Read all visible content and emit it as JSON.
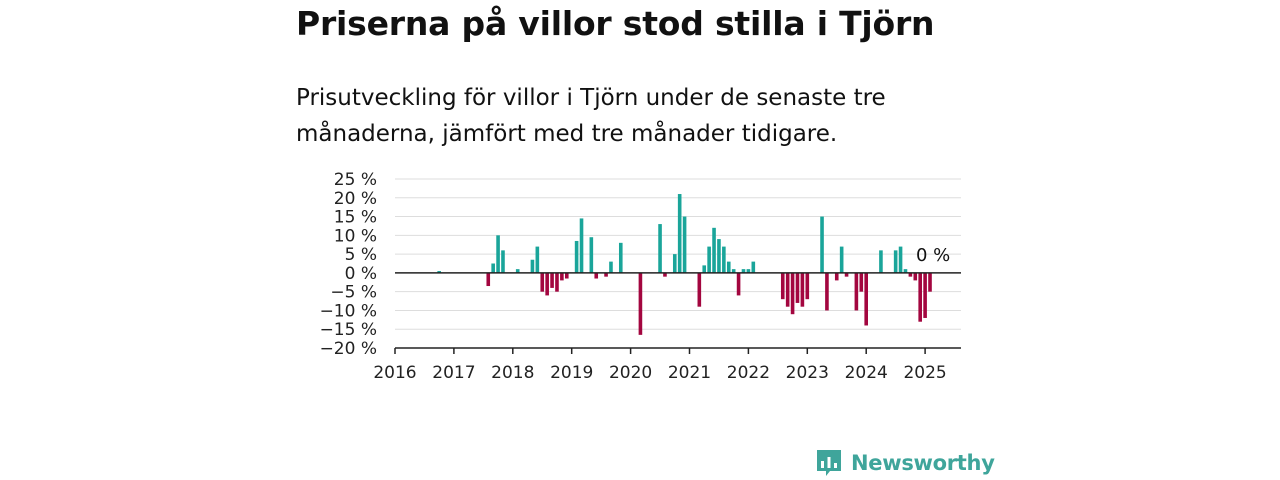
{
  "title": "Priserna på villor stod stilla i Tjörn",
  "subtitle": "Prisutveckling för villor i Tjörn under de senaste tre månaderna, jämfört med tre månader tidigare.",
  "brand": {
    "name": "Newsworthy",
    "icon": "newsworthy-logo-icon",
    "color": "#3fa59b"
  },
  "colors": {
    "positive": "#1aa59a",
    "negative": "#a3063f",
    "grid": "#dddddd",
    "axis": "#222222"
  },
  "chart_data": {
    "type": "bar",
    "title": "Priserna på villor stod stilla i Tjörn",
    "xlabel": "",
    "ylabel": "",
    "x_ticks": [
      "2016",
      "2017",
      "2018",
      "2019",
      "2020",
      "2021",
      "2022",
      "2023",
      "2024",
      "2025"
    ],
    "y_ticks": [
      25,
      20,
      15,
      10,
      5,
      0,
      -5,
      -10,
      -15,
      -20
    ],
    "y_tick_labels": [
      "25 %",
      "20 %",
      "15 %",
      "10 %",
      "5 %",
      "0 %",
      "−5 %",
      "−10 %",
      "−15 %",
      "−20 %"
    ],
    "ylim": [
      -20,
      25
    ],
    "xlim": [
      "2016-01",
      "2025-08"
    ],
    "grid": true,
    "last_value_label": "0 %",
    "series": [
      {
        "values": [
          {
            "x": "2016-10",
            "y": 0.5
          },
          {
            "x": "2017-08",
            "y": -3.5
          },
          {
            "x": "2017-09",
            "y": 2.5
          },
          {
            "x": "2017-10",
            "y": 10
          },
          {
            "x": "2017-11",
            "y": 6
          },
          {
            "x": "2018-02",
            "y": 1
          },
          {
            "x": "2018-05",
            "y": 3.5
          },
          {
            "x": "2018-06",
            "y": 7
          },
          {
            "x": "2018-07",
            "y": -5
          },
          {
            "x": "2018-08",
            "y": -6
          },
          {
            "x": "2018-09",
            "y": -4
          },
          {
            "x": "2018-10",
            "y": -5
          },
          {
            "x": "2018-11",
            "y": -2
          },
          {
            "x": "2018-12",
            "y": -1.5
          },
          {
            "x": "2019-02",
            "y": 8.5
          },
          {
            "x": "2019-03",
            "y": 14.5
          },
          {
            "x": "2019-05",
            "y": 9.5
          },
          {
            "x": "2019-06",
            "y": -1.5
          },
          {
            "x": "2019-08",
            "y": -1
          },
          {
            "x": "2019-09",
            "y": 3
          },
          {
            "x": "2019-11",
            "y": 8
          },
          {
            "x": "2020-03",
            "y": -16.5
          },
          {
            "x": "2020-07",
            "y": 13
          },
          {
            "x": "2020-08",
            "y": -1
          },
          {
            "x": "2020-10",
            "y": 5
          },
          {
            "x": "2020-11",
            "y": 21
          },
          {
            "x": "2020-12",
            "y": 15
          },
          {
            "x": "2021-03",
            "y": -9
          },
          {
            "x": "2021-04",
            "y": 2
          },
          {
            "x": "2021-05",
            "y": 7
          },
          {
            "x": "2021-06",
            "y": 12
          },
          {
            "x": "2021-07",
            "y": 9
          },
          {
            "x": "2021-08",
            "y": 7
          },
          {
            "x": "2021-09",
            "y": 3
          },
          {
            "x": "2021-10",
            "y": 1
          },
          {
            "x": "2021-11",
            "y": -6
          },
          {
            "x": "2021-12",
            "y": 1
          },
          {
            "x": "2022-01",
            "y": 1
          },
          {
            "x": "2022-02",
            "y": 3
          },
          {
            "x": "2022-08",
            "y": -7
          },
          {
            "x": "2022-09",
            "y": -9
          },
          {
            "x": "2022-10",
            "y": -11
          },
          {
            "x": "2022-11",
            "y": -8
          },
          {
            "x": "2022-12",
            "y": -9
          },
          {
            "x": "2023-01",
            "y": -7
          },
          {
            "x": "2023-04",
            "y": 15
          },
          {
            "x": "2023-05",
            "y": -10
          },
          {
            "x": "2023-07",
            "y": -2
          },
          {
            "x": "2023-08",
            "y": 7
          },
          {
            "x": "2023-09",
            "y": -1
          },
          {
            "x": "2023-11",
            "y": -10
          },
          {
            "x": "2023-12",
            "y": -5
          },
          {
            "x": "2024-01",
            "y": -14
          },
          {
            "x": "2024-04",
            "y": 6
          },
          {
            "x": "2024-07",
            "y": 6
          },
          {
            "x": "2024-08",
            "y": 7
          },
          {
            "x": "2024-09",
            "y": 1
          },
          {
            "x": "2024-10",
            "y": -1
          },
          {
            "x": "2024-11",
            "y": -2
          },
          {
            "x": "2024-12",
            "y": -13
          },
          {
            "x": "2025-01",
            "y": -12
          },
          {
            "x": "2025-02",
            "y": -5
          },
          {
            "x": "2025-05",
            "y": 0
          }
        ]
      }
    ]
  }
}
